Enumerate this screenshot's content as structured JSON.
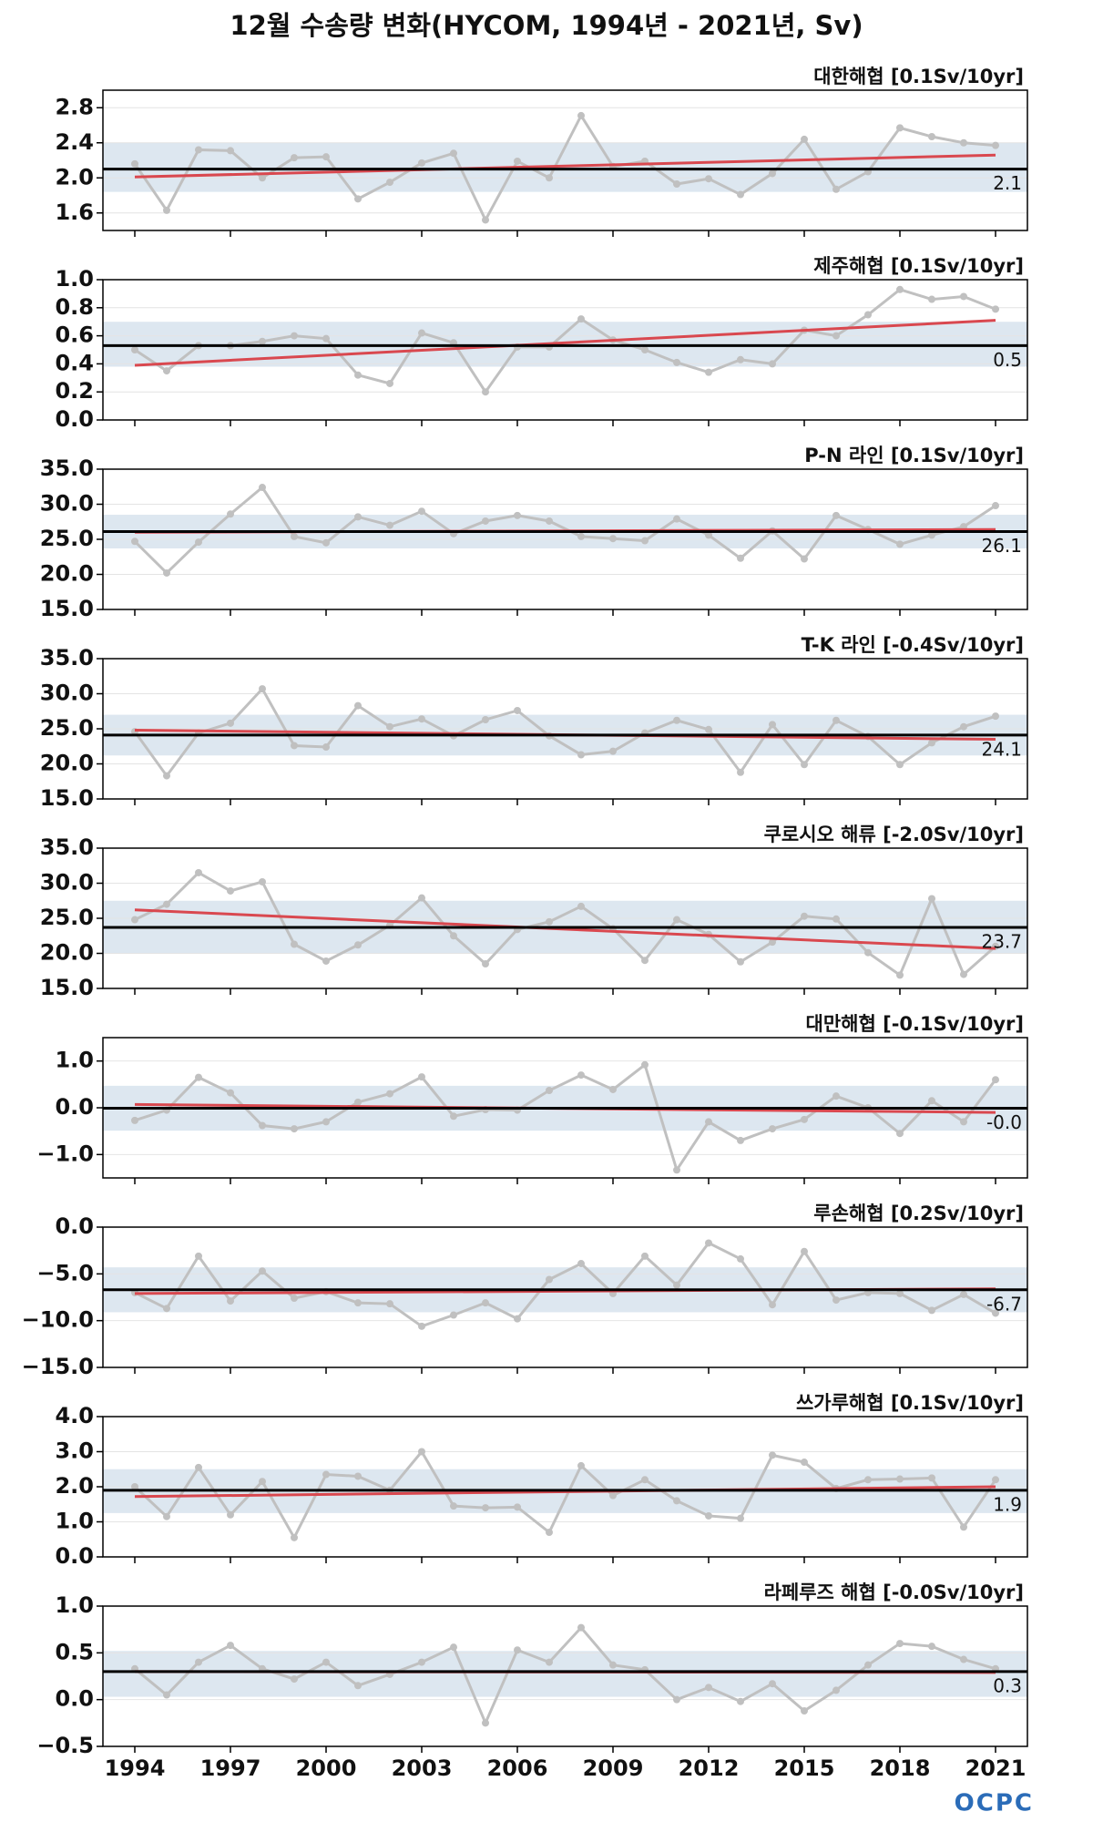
{
  "title": "12월 수송량 변화(HYCOM, 1994년 - 2021년, Sv)",
  "logo": "OCPC",
  "chart_data": [
    {
      "type": "line",
      "title": "대한해협 [0.1Sv/10yr]",
      "x": [
        1994,
        1995,
        1996,
        1997,
        1998,
        1999,
        2000,
        2001,
        2002,
        2003,
        2004,
        2005,
        2006,
        2007,
        2008,
        2009,
        2010,
        2011,
        2012,
        2013,
        2014,
        2015,
        2016,
        2017,
        2018,
        2019,
        2020,
        2021
      ],
      "values": [
        2.16,
        1.63,
        2.32,
        2.31,
        2.0,
        2.23,
        2.24,
        1.76,
        1.95,
        2.17,
        2.28,
        1.52,
        2.19,
        2.0,
        2.71,
        2.13,
        2.19,
        1.93,
        1.99,
        1.81,
        2.05,
        2.44,
        1.87,
        2.07,
        2.57,
        2.47,
        2.4,
        2.37
      ],
      "mean": 2.1,
      "band": [
        1.84,
        2.4
      ],
      "trend": [
        2.01,
        2.26
      ],
      "xlim": [
        1993,
        2022
      ],
      "xticks": [
        1994,
        1997,
        2000,
        2003,
        2006,
        2009,
        2012,
        2015,
        2018,
        2021
      ],
      "ylim": [
        1.4,
        3.0
      ],
      "yticks": [
        1.6,
        {
          "value": 2,
          "label": "2.0"
        },
        2.4,
        2.8
      ],
      "grid": true,
      "color": "#c0c0c0",
      "mean_color": "#000000",
      "trend_color": "#d9484f",
      "band_color": "#dde7f0"
    },
    {
      "type": "line",
      "title": "제주해협 [0.1Sv/10yr]",
      "x": [
        1994,
        1995,
        1996,
        1997,
        1998,
        1999,
        2000,
        2001,
        2002,
        2003,
        2004,
        2005,
        2006,
        2007,
        2008,
        2009,
        2010,
        2011,
        2012,
        2013,
        2014,
        2015,
        2016,
        2017,
        2018,
        2019,
        2020,
        2021
      ],
      "values": [
        0.5,
        0.35,
        0.53,
        0.53,
        0.56,
        0.6,
        0.58,
        0.32,
        0.26,
        0.62,
        0.55,
        0.2,
        0.52,
        0.52,
        0.72,
        0.57,
        0.5,
        0.41,
        0.34,
        0.43,
        0.4,
        0.64,
        0.6,
        0.75,
        0.93,
        0.86,
        0.88,
        0.79
      ],
      "mean": {
        "value": 0.53,
        "label": "0.5"
      },
      "band": [
        0.38,
        0.7
      ],
      "trend": [
        0.39,
        0.71
      ],
      "xlim": [
        1993,
        2022
      ],
      "xticks": [
        1994,
        1997,
        2000,
        2003,
        2006,
        2009,
        2012,
        2015,
        2018,
        2021
      ],
      "ylim": [
        0,
        1
      ],
      "yticks": [
        {
          "value": 0,
          "label": "0.0"
        },
        0.2,
        0.4,
        0.6,
        0.8,
        {
          "value": 1,
          "label": "1.0"
        }
      ],
      "grid": true,
      "color": "#c0c0c0",
      "mean_color": "#000000",
      "trend_color": "#d9484f",
      "band_color": "#dde7f0"
    },
    {
      "type": "line",
      "title": "P-N 라인 [0.1Sv/10yr]",
      "x": [
        1994,
        1995,
        1996,
        1997,
        1998,
        1999,
        2000,
        2001,
        2002,
        2003,
        2004,
        2005,
        2006,
        2007,
        2008,
        2009,
        2010,
        2011,
        2012,
        2013,
        2014,
        2015,
        2016,
        2017,
        2018,
        2019,
        2020,
        2021
      ],
      "values": [
        24.7,
        20.2,
        24.6,
        28.6,
        32.4,
        25.4,
        24.5,
        28.2,
        27.0,
        29.0,
        25.8,
        27.6,
        28.4,
        27.6,
        25.4,
        25.1,
        24.8,
        27.9,
        25.6,
        22.3,
        26.2,
        22.2,
        28.4,
        26.4,
        24.3,
        25.6,
        26.8,
        29.8
      ],
      "mean": 26.1,
      "band": [
        23.7,
        28.5
      ],
      "trend": [
        26.0,
        26.4
      ],
      "xlim": [
        1993,
        2022
      ],
      "xticks": [
        1994,
        1997,
        2000,
        2003,
        2006,
        2009,
        2012,
        2015,
        2018,
        2021
      ],
      "ylim": [
        15,
        35
      ],
      "yticks": [
        {
          "value": 15,
          "label": "15.0"
        },
        {
          "value": 20,
          "label": "20.0"
        },
        {
          "value": 25,
          "label": "25.0"
        },
        {
          "value": 30,
          "label": "30.0"
        },
        {
          "value": 35,
          "label": "35.0"
        }
      ],
      "grid": true,
      "color": "#c0c0c0",
      "mean_color": "#000000",
      "trend_color": "#d9484f",
      "band_color": "#dde7f0"
    },
    {
      "type": "line",
      "title": "T-K 라인 [-0.4Sv/10yr]",
      "x": [
        1994,
        1995,
        1996,
        1997,
        1998,
        1999,
        2000,
        2001,
        2002,
        2003,
        2004,
        2005,
        2006,
        2007,
        2008,
        2009,
        2010,
        2011,
        2012,
        2013,
        2014,
        2015,
        2016,
        2017,
        2018,
        2019,
        2020,
        2021
      ],
      "values": [
        24.6,
        18.3,
        24.4,
        25.8,
        30.7,
        22.6,
        22.4,
        28.3,
        25.3,
        26.4,
        24.0,
        26.3,
        27.6,
        24.0,
        21.3,
        21.8,
        24.4,
        26.2,
        24.9,
        18.8,
        25.6,
        19.9,
        26.2,
        23.9,
        19.9,
        23.0,
        25.3,
        26.8
      ],
      "mean": 24.1,
      "band": [
        21.2,
        27.0
      ],
      "trend": [
        24.8,
        23.5
      ],
      "xlim": [
        1993,
        2022
      ],
      "xticks": [
        1994,
        1997,
        2000,
        2003,
        2006,
        2009,
        2012,
        2015,
        2018,
        2021
      ],
      "ylim": [
        15,
        35
      ],
      "yticks": [
        {
          "value": 15,
          "label": "15.0"
        },
        {
          "value": 20,
          "label": "20.0"
        },
        {
          "value": 25,
          "label": "25.0"
        },
        {
          "value": 30,
          "label": "30.0"
        },
        {
          "value": 35,
          "label": "35.0"
        }
      ],
      "grid": true,
      "color": "#c0c0c0",
      "mean_color": "#000000",
      "trend_color": "#d9484f",
      "band_color": "#dde7f0"
    },
    {
      "type": "line",
      "title": "쿠로시오 해류 [-2.0Sv/10yr]",
      "x": [
        1994,
        1995,
        1996,
        1997,
        1998,
        1999,
        2000,
        2001,
        2002,
        2003,
        2004,
        2005,
        2006,
        2007,
        2008,
        2009,
        2010,
        2011,
        2012,
        2013,
        2014,
        2015,
        2016,
        2017,
        2018,
        2019,
        2020,
        2021
      ],
      "values": [
        24.8,
        27.0,
        31.5,
        28.9,
        30.2,
        21.3,
        18.9,
        21.2,
        24.0,
        27.9,
        22.5,
        18.5,
        23.4,
        24.5,
        26.7,
        23.5,
        19.0,
        24.8,
        22.7,
        18.8,
        21.6,
        25.3,
        24.9,
        20.1,
        16.9,
        27.8,
        17.0,
        21.0
      ],
      "mean": 23.7,
      "band": [
        20.0,
        27.5
      ],
      "trend": [
        26.2,
        20.7
      ],
      "xlim": [
        1993,
        2022
      ],
      "xticks": [
        1994,
        1997,
        2000,
        2003,
        2006,
        2009,
        2012,
        2015,
        2018,
        2021
      ],
      "ylim": [
        15,
        35
      ],
      "yticks": [
        {
          "value": 15,
          "label": "15.0"
        },
        {
          "value": 20,
          "label": "20.0"
        },
        {
          "value": 25,
          "label": "25.0"
        },
        {
          "value": 30,
          "label": "30.0"
        },
        {
          "value": 35,
          "label": "35.0"
        }
      ],
      "grid": true,
      "color": "#c0c0c0",
      "mean_color": "#000000",
      "trend_color": "#d9484f",
      "band_color": "#dde7f0"
    },
    {
      "type": "line",
      "title": "대만해협 [-0.1Sv/10yr]",
      "x": [
        1994,
        1995,
        1996,
        1997,
        1998,
        1999,
        2000,
        2001,
        2002,
        2003,
        2004,
        2005,
        2006,
        2007,
        2008,
        2009,
        2010,
        2011,
        2012,
        2013,
        2014,
        2015,
        2016,
        2017,
        2018,
        2019,
        2020,
        2021
      ],
      "values": [
        -0.27,
        -0.05,
        0.65,
        0.32,
        -0.38,
        -0.45,
        -0.3,
        0.12,
        0.3,
        0.66,
        -0.18,
        -0.04,
        -0.05,
        0.37,
        0.7,
        0.39,
        0.92,
        -1.33,
        -0.3,
        -0.7,
        -0.45,
        -0.25,
        0.25,
        0.0,
        -0.55,
        0.15,
        -0.3,
        0.6
      ],
      "mean": {
        "value": -0.01,
        "label": "-0.0"
      },
      "band": [
        -0.49,
        0.47
      ],
      "trend": [
        0.07,
        -0.1
      ],
      "xlim": [
        1993,
        2022
      ],
      "xticks": [
        1994,
        1997,
        2000,
        2003,
        2006,
        2009,
        2012,
        2015,
        2018,
        2021
      ],
      "ylim": [
        -1.5,
        1.5
      ],
      "yticks": [
        {
          "value": -1,
          "label": "−1.0"
        },
        {
          "value": 0,
          "label": "0.0"
        },
        {
          "value": 1,
          "label": "1.0"
        }
      ],
      "grid": true,
      "color": "#c0c0c0",
      "mean_color": "#000000",
      "trend_color": "#d9484f",
      "band_color": "#dde7f0"
    },
    {
      "type": "line",
      "title": "루손해협 [0.2Sv/10yr]",
      "x": [
        1994,
        1995,
        1996,
        1997,
        1998,
        1999,
        2000,
        2001,
        2002,
        2003,
        2004,
        2005,
        2006,
        2007,
        2008,
        2009,
        2010,
        2011,
        2012,
        2013,
        2014,
        2015,
        2016,
        2017,
        2018,
        2019,
        2020,
        2021
      ],
      "values": [
        -7.0,
        -8.7,
        -3.1,
        -7.9,
        -4.7,
        -7.6,
        -6.9,
        -8.1,
        -8.2,
        -10.6,
        -9.4,
        -8.1,
        -9.8,
        -5.6,
        -3.9,
        -7.1,
        -3.1,
        -6.2,
        -1.7,
        -3.4,
        -8.3,
        -2.6,
        -7.8,
        -7.0,
        -7.1,
        -8.9,
        -7.2,
        -9.2
      ],
      "mean": -6.7,
      "band": [
        -9.1,
        -4.3
      ],
      "trend": [
        -7.1,
        -6.6
      ],
      "xlim": [
        1993,
        2022
      ],
      "xticks": [
        1994,
        1997,
        2000,
        2003,
        2006,
        2009,
        2012,
        2015,
        2018,
        2021
      ],
      "ylim": [
        -15,
        0
      ],
      "yticks": [
        {
          "value": -15,
          "label": "−15.0"
        },
        {
          "value": -10,
          "label": "−10.0"
        },
        {
          "value": -5,
          "label": "−5.0"
        },
        {
          "value": 0,
          "label": "0.0"
        }
      ],
      "grid": true,
      "color": "#c0c0c0",
      "mean_color": "#000000",
      "trend_color": "#d9484f",
      "band_color": "#dde7f0"
    },
    {
      "type": "line",
      "title": "쓰가루해협 [0.1Sv/10yr]",
      "x": [
        1994,
        1995,
        1996,
        1997,
        1998,
        1999,
        2000,
        2001,
        2002,
        2003,
        2004,
        2005,
        2006,
        2007,
        2008,
        2009,
        2010,
        2011,
        2012,
        2013,
        2014,
        2015,
        2016,
        2017,
        2018,
        2019,
        2020,
        2021
      ],
      "values": [
        2.0,
        1.15,
        2.55,
        1.2,
        2.15,
        0.55,
        2.35,
        2.3,
        1.9,
        3.0,
        1.45,
        1.4,
        1.42,
        0.7,
        2.6,
        1.75,
        2.2,
        1.6,
        1.17,
        1.1,
        2.9,
        2.7,
        1.95,
        2.2,
        2.22,
        2.25,
        0.85,
        2.2
      ],
      "mean": 1.9,
      "band": [
        1.25,
        2.5
      ],
      "trend": [
        1.72,
        2.0
      ],
      "xlim": [
        1993,
        2022
      ],
      "xticks": [
        1994,
        1997,
        2000,
        2003,
        2006,
        2009,
        2012,
        2015,
        2018,
        2021
      ],
      "ylim": [
        0,
        4
      ],
      "yticks": [
        {
          "value": 0,
          "label": "0.0"
        },
        {
          "value": 1,
          "label": "1.0"
        },
        {
          "value": 2,
          "label": "2.0"
        },
        {
          "value": 3,
          "label": "3.0"
        },
        {
          "value": 4,
          "label": "4.0"
        }
      ],
      "grid": true,
      "color": "#c0c0c0",
      "mean_color": "#000000",
      "trend_color": "#d9484f",
      "band_color": "#dde7f0"
    },
    {
      "type": "line",
      "title": "라페루즈 해협 [-0.0Sv/10yr]",
      "x": [
        1994,
        1995,
        1996,
        1997,
        1998,
        1999,
        2000,
        2001,
        2002,
        2003,
        2004,
        2005,
        2006,
        2007,
        2008,
        2009,
        2010,
        2011,
        2012,
        2013,
        2014,
        2015,
        2016,
        2017,
        2018,
        2019,
        2020,
        2021
      ],
      "values": [
        0.33,
        0.05,
        0.4,
        0.58,
        0.33,
        0.22,
        0.4,
        0.15,
        0.27,
        0.4,
        0.56,
        -0.25,
        0.53,
        0.4,
        0.77,
        0.37,
        0.32,
        0.0,
        0.13,
        -0.02,
        0.17,
        -0.12,
        0.1,
        0.37,
        0.6,
        0.57,
        0.43,
        0.33
      ],
      "mean": 0.3,
      "band": [
        0.03,
        0.52
      ],
      "trend": [
        0.3,
        0.29
      ],
      "xlim": [
        1993,
        2022
      ],
      "xticks": [
        1994,
        1997,
        2000,
        2003,
        2006,
        2009,
        2012,
        2015,
        2018,
        2021
      ],
      "xtick_labels": true,
      "ylim": [
        -0.5,
        1
      ],
      "yticks": [
        {
          "value": -0.5,
          "label": "−0.5"
        },
        {
          "value": 0,
          "label": "0.0"
        },
        0.5,
        {
          "value": 1,
          "label": "1.0"
        }
      ],
      "grid": true,
      "color": "#c0c0c0",
      "mean_color": "#000000",
      "trend_color": "#d9484f",
      "band_color": "#dde7f0"
    }
  ]
}
